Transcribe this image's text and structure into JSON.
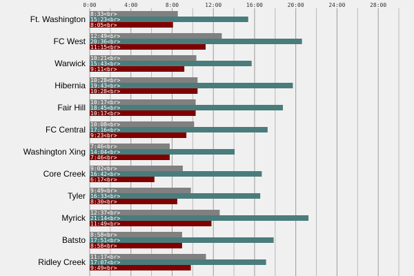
{
  "chart_data": {
    "type": "bar",
    "orientation": "horizontal",
    "x_ticks": [
      "0:00",
      "4:00",
      "8:00",
      "12:00",
      "16:00",
      "20:00",
      "24:00",
      "28:00"
    ],
    "xlim_minutes": [
      0,
      1800
    ],
    "grid": true,
    "categories": [
      "Ft. Washington",
      "FC West",
      "Warwick",
      "Hibernia",
      "Fair Hill",
      "FC Central",
      "Washington Xing",
      "Core Creek",
      "Tyler",
      "Myrick",
      "Batsto",
      "Ridley Creek"
    ],
    "series": [
      {
        "color": "#808080",
        "values_minutes": [
          513,
          769,
          621,
          628,
          617,
          608,
          466,
          542,
          589,
          757,
          538,
          677
        ],
        "labels": [
          "8:33<br>",
          "12:49<br>",
          "10:21<br>",
          "10:28<br>",
          "10:17<br>",
          "10:08<br>",
          "7:46<br>",
          "9:02<br>",
          "9:49<br>",
          "12:37<br>",
          "8:58<br>",
          "11:17<br>"
        ]
      },
      {
        "color": "#4a7c7c",
        "values_minutes": [
          923,
          1236,
          943,
          1183,
          1125,
          1036,
          844,
          1002,
          993,
          1274,
          1071,
          1027
        ],
        "labels": [
          "15:23<br>",
          "20:36<br>",
          "15:43<br>",
          "19:43<br>",
          "18:45<br>",
          "17:16<br>",
          "14:04<br>",
          "16:42<br>",
          "16:33<br>",
          "21:14<br>",
          "17:51<br>",
          "17:07<br>"
        ]
      },
      {
        "color": "#800000",
        "values_minutes": [
          485,
          675,
          551,
          628,
          617,
          563,
          466,
          377,
          510,
          709,
          538,
          589
        ],
        "labels": [
          "8:05<br>",
          "11:15<br>",
          "9:11<br>",
          "10:28<br>",
          "10:17<br>",
          "9:23<br>",
          "7:46<br>",
          "6:17<br>",
          "8:30<br>",
          "11:49<br>",
          "8:58<br>",
          "9:49<br>"
        ]
      }
    ]
  }
}
